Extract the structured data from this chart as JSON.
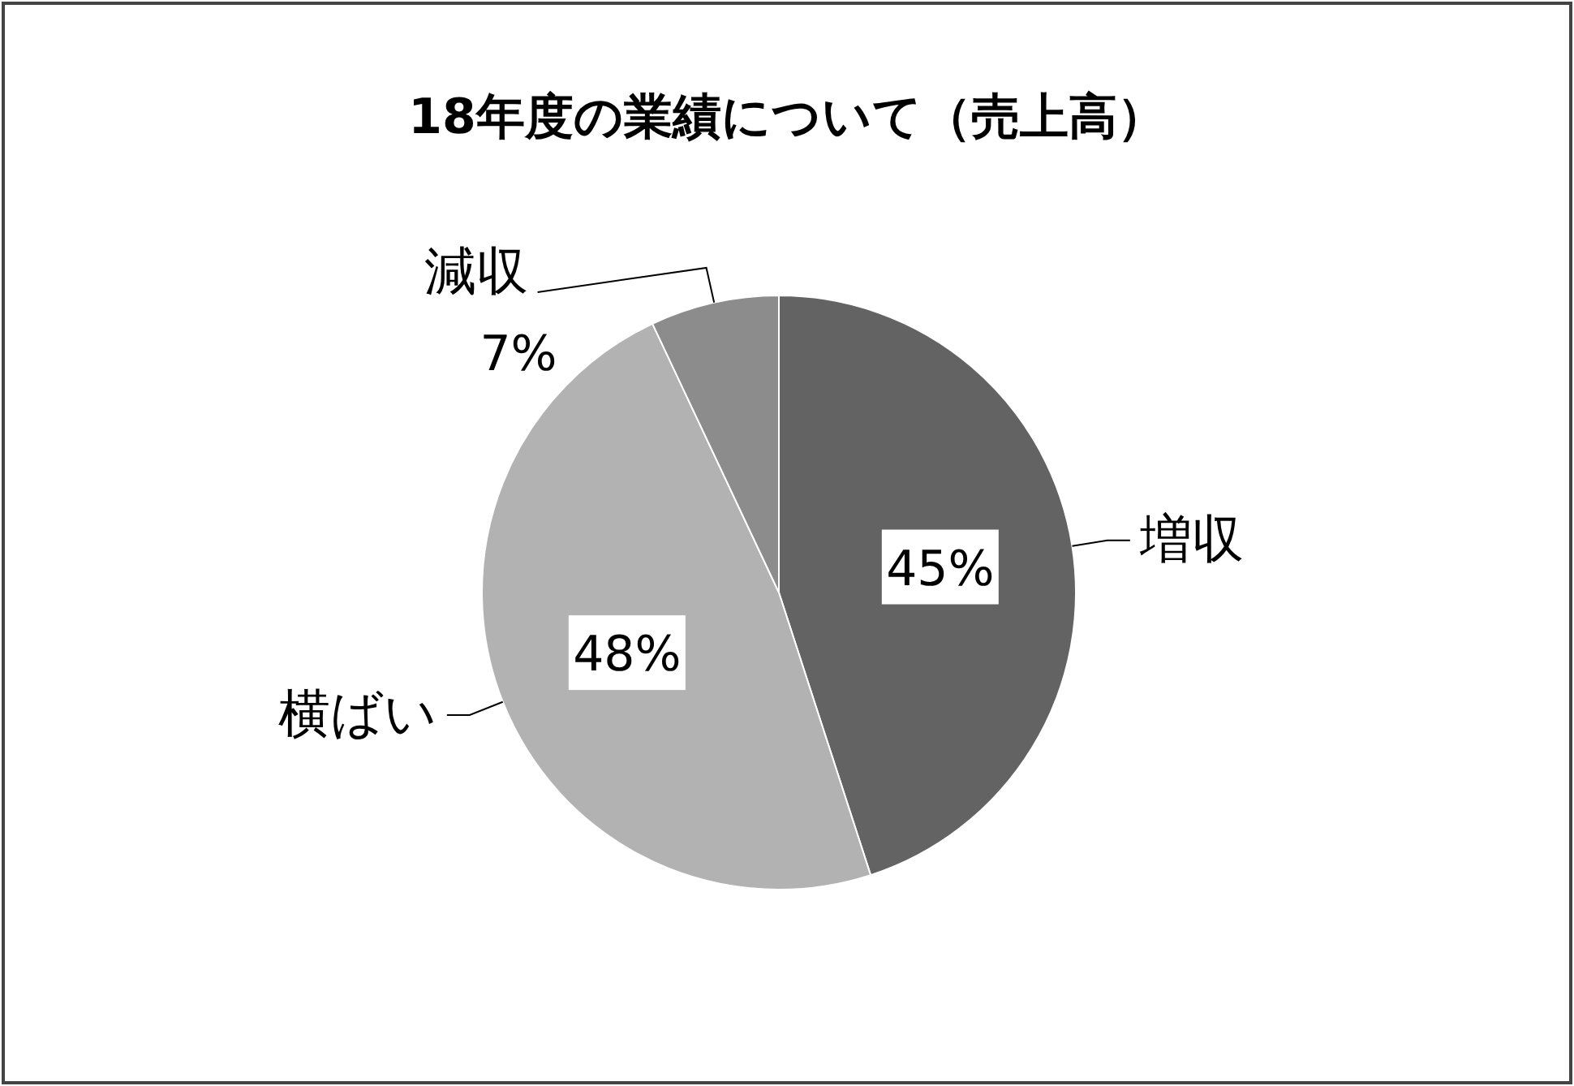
{
  "chart_data": {
    "type": "pie",
    "title": "18年度の業績について（売上高）",
    "categories": [
      "増収",
      "横ばい",
      "減収"
    ],
    "values": [
      45,
      48,
      7
    ],
    "colors": [
      "#636363",
      "#b2b2b2",
      "#8c8c8c"
    ],
    "value_labels": [
      "45%",
      "48%",
      "7%"
    ]
  }
}
